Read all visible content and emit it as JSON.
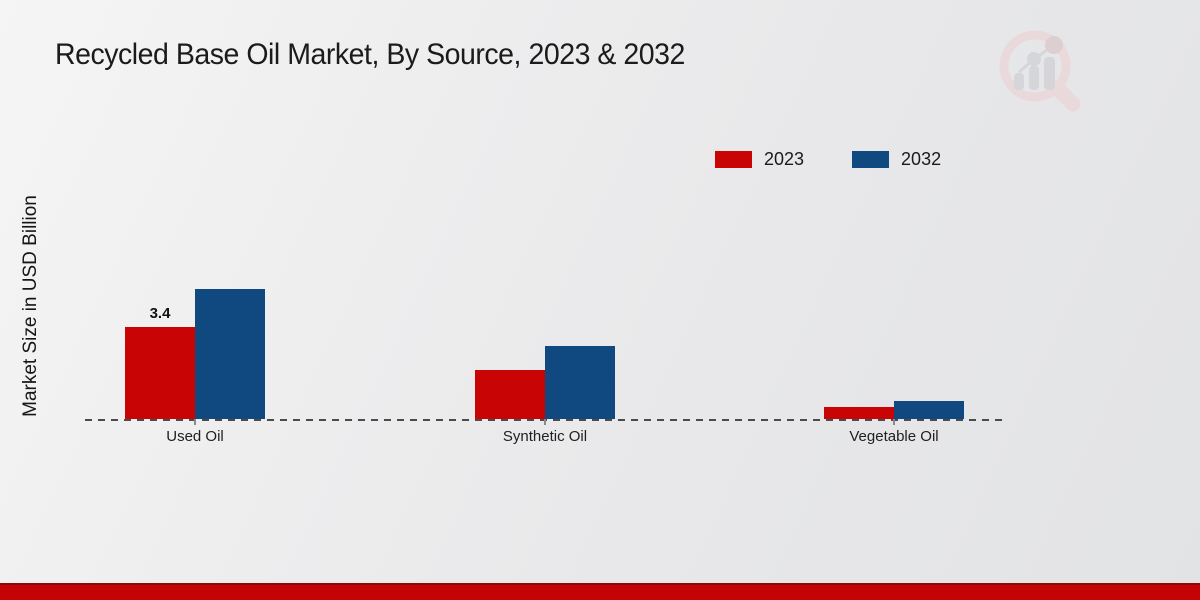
{
  "title": "Recycled Base Oil Market, By Source, 2023 & 2032",
  "y_axis_label": "Market Size in USD Billion",
  "legend": {
    "items": [
      {
        "label": "2023",
        "color": "#c80404"
      },
      {
        "label": "2032",
        "color": "#10497f"
      }
    ]
  },
  "chart_data": {
    "type": "bar",
    "title": "Recycled Base Oil Market, By Source, 2023 & 2032",
    "ylabel": "Market Size in USD Billion",
    "xlabel": "",
    "categories": [
      "Used Oil",
      "Synthetic Oil",
      "Vegetable Oil"
    ],
    "series": [
      {
        "name": "2023",
        "color": "#c80404",
        "values": [
          3.4,
          1.8,
          0.45
        ]
      },
      {
        "name": "2032",
        "color": "#10497f",
        "values": [
          4.8,
          2.7,
          0.65
        ]
      }
    ],
    "data_labels": [
      {
        "series": "2023",
        "category": "Used Oil",
        "text": "3.4"
      }
    ],
    "ylim": [
      0,
      6.6
    ],
    "grid": false,
    "baseline_style": "dashed",
    "legend_position": "top-right"
  },
  "watermark": {
    "name": "magnifier-bar-chart-logo"
  },
  "footer": {
    "accent_color": "#c40404"
  }
}
